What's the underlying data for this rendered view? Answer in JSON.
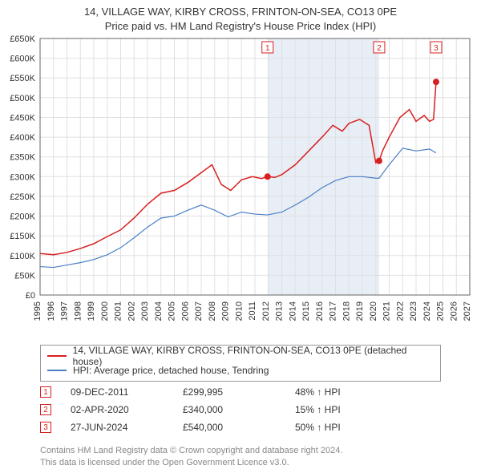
{
  "title_line1": "14, VILLAGE WAY, KIRBY CROSS, FRINTON-ON-SEA, CO13 0PE",
  "title_line2": "Price paid vs. HM Land Registry's House Price Index (HPI)",
  "chart": {
    "type": "line",
    "background_color": "#ffffff",
    "grid_color": "#e0e0e0",
    "axis_color": "#666666",
    "shaded_band": {
      "x_start": 2011.94,
      "x_end": 2020.25,
      "fill": "#e8eef6"
    },
    "xlim": [
      1995,
      2027
    ],
    "xticks": [
      1995,
      1996,
      1997,
      1998,
      1999,
      2000,
      2001,
      2002,
      2003,
      2004,
      2005,
      2006,
      2007,
      2008,
      2009,
      2010,
      2011,
      2012,
      2013,
      2014,
      2015,
      2016,
      2017,
      2018,
      2019,
      2020,
      2021,
      2022,
      2023,
      2024,
      2025,
      2026,
      2027
    ],
    "ylim": [
      0,
      650000
    ],
    "ytick_step": 50000,
    "ytick_labels": [
      "£0",
      "£50K",
      "£100K",
      "£150K",
      "£200K",
      "£250K",
      "£300K",
      "£350K",
      "£400K",
      "£450K",
      "£500K",
      "£550K",
      "£600K",
      "£650K"
    ],
    "tick_fontsize": 11,
    "xlabel_rotation": -90,
    "series": [
      {
        "name": "price_paid",
        "label": "14, VILLAGE WAY, KIRBY CROSS, FRINTON-ON-SEA, CO13 0PE (detached house)",
        "color": "#d81e1e",
        "line_width": 1.5,
        "data": [
          [
            1995.0,
            105000
          ],
          [
            1996.0,
            102000
          ],
          [
            1997.0,
            108000
          ],
          [
            1998.0,
            118000
          ],
          [
            1999.0,
            130000
          ],
          [
            2000.0,
            148000
          ],
          [
            2001.0,
            165000
          ],
          [
            2002.0,
            195000
          ],
          [
            2003.0,
            230000
          ],
          [
            2004.0,
            258000
          ],
          [
            2005.0,
            265000
          ],
          [
            2006.0,
            285000
          ],
          [
            2007.0,
            310000
          ],
          [
            2007.8,
            330000
          ],
          [
            2008.5,
            280000
          ],
          [
            2009.2,
            265000
          ],
          [
            2010.0,
            292000
          ],
          [
            2010.8,
            300000
          ],
          [
            2011.5,
            295000
          ],
          [
            2011.94,
            299995
          ],
          [
            2012.5,
            298000
          ],
          [
            2013.0,
            305000
          ],
          [
            2014.0,
            330000
          ],
          [
            2015.0,
            365000
          ],
          [
            2016.0,
            400000
          ],
          [
            2016.8,
            430000
          ],
          [
            2017.5,
            415000
          ],
          [
            2018.0,
            435000
          ],
          [
            2018.8,
            445000
          ],
          [
            2019.5,
            430000
          ],
          [
            2020.0,
            335000
          ],
          [
            2020.25,
            340000
          ],
          [
            2020.5,
            365000
          ],
          [
            2021.0,
            400000
          ],
          [
            2021.8,
            450000
          ],
          [
            2022.5,
            470000
          ],
          [
            2023.0,
            440000
          ],
          [
            2023.6,
            455000
          ],
          [
            2024.0,
            440000
          ],
          [
            2024.3,
            445000
          ],
          [
            2024.49,
            540000
          ]
        ]
      },
      {
        "name": "hpi",
        "label": "HPI: Average price, detached house, Tendring",
        "color": "#4a7fc5",
        "line_width": 1.2,
        "data": [
          [
            1995.0,
            72000
          ],
          [
            1996.0,
            70000
          ],
          [
            1997.0,
            76000
          ],
          [
            1998.0,
            82000
          ],
          [
            1999.0,
            90000
          ],
          [
            2000.0,
            102000
          ],
          [
            2001.0,
            120000
          ],
          [
            2002.0,
            145000
          ],
          [
            2003.0,
            172000
          ],
          [
            2004.0,
            195000
          ],
          [
            2005.0,
            200000
          ],
          [
            2006.0,
            215000
          ],
          [
            2007.0,
            228000
          ],
          [
            2008.0,
            215000
          ],
          [
            2009.0,
            198000
          ],
          [
            2010.0,
            210000
          ],
          [
            2011.0,
            205000
          ],
          [
            2011.94,
            203000
          ],
          [
            2013.0,
            210000
          ],
          [
            2014.0,
            228000
          ],
          [
            2015.0,
            248000
          ],
          [
            2016.0,
            272000
          ],
          [
            2017.0,
            290000
          ],
          [
            2018.0,
            300000
          ],
          [
            2019.0,
            300000
          ],
          [
            2020.0,
            296000
          ],
          [
            2020.25,
            296000
          ],
          [
            2021.0,
            330000
          ],
          [
            2022.0,
            372000
          ],
          [
            2023.0,
            365000
          ],
          [
            2024.0,
            370000
          ],
          [
            2024.49,
            360000
          ]
        ]
      }
    ],
    "markers": [
      {
        "id": "1",
        "x": 2011.94,
        "y": 299995,
        "color": "#d81e1e"
      },
      {
        "id": "2",
        "x": 2020.25,
        "y": 340000,
        "color": "#d81e1e"
      },
      {
        "id": "3",
        "x": 2024.49,
        "y": 540000,
        "color": "#d81e1e"
      }
    ],
    "marker_box_stroke": "#d81e1e",
    "marker_box_fill": "#ffffff",
    "marker_box_size": 14,
    "marker_dot_radius": 4
  },
  "legend": {
    "border_color": "#999999",
    "items": [
      {
        "color": "#d81e1e",
        "label": "14, VILLAGE WAY, KIRBY CROSS, FRINTON-ON-SEA, CO13 0PE (detached house)"
      },
      {
        "color": "#4a7fc5",
        "label": "HPI: Average price, detached house, Tendring"
      }
    ]
  },
  "events": [
    {
      "id": "1",
      "date": "09-DEC-2011",
      "price": "£299,995",
      "delta": "48% ↑ HPI",
      "box_color": "#d81e1e"
    },
    {
      "id": "2",
      "date": "02-APR-2020",
      "price": "£340,000",
      "delta": "15% ↑ HPI",
      "box_color": "#d81e1e"
    },
    {
      "id": "3",
      "date": "27-JUN-2024",
      "price": "£540,000",
      "delta": "50% ↑ HPI",
      "box_color": "#d81e1e"
    }
  ],
  "footer_line1": "Contains HM Land Registry data © Crown copyright and database right 2024.",
  "footer_line2": "This data is licensed under the Open Government Licence v3.0."
}
